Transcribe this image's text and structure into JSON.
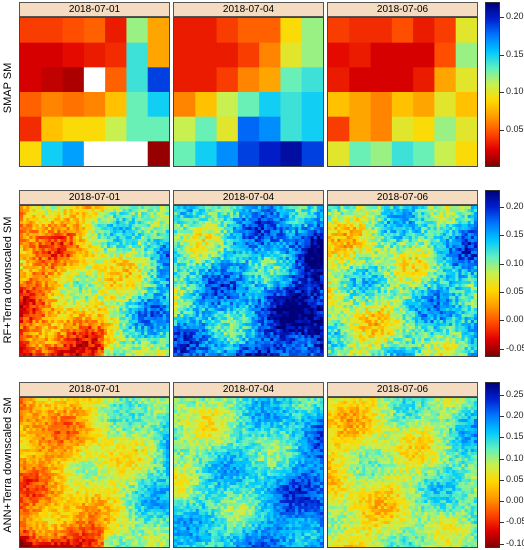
{
  "dates": [
    "2018-07-01",
    "2018-07-04",
    "2018-07-06"
  ],
  "rows": [
    {
      "label": "SMAP SM",
      "colorbar": {
        "min": 0.0,
        "max": 0.22,
        "ticks": [
          0.05,
          0.1,
          0.15,
          0.2
        ],
        "tick_labels": [
          "0.05",
          "0.10",
          "0.15",
          "0.20"
        ]
      }
    },
    {
      "label": "RF+Terra downscaled SM",
      "colorbar": {
        "min": -0.065,
        "max": 0.23,
        "ticks": [
          -0.05,
          0.0,
          0.05,
          0.1,
          0.15,
          0.2
        ],
        "tick_labels": [
          "-0.05",
          "0.00",
          "0.05",
          "0.10",
          "0.15",
          "0.20"
        ]
      }
    },
    {
      "label": "ANN+Terra downscaled SM",
      "colorbar": {
        "min": -0.11,
        "max": 0.28,
        "ticks": [
          -0.1,
          -0.05,
          0.0,
          0.05,
          0.1,
          0.15,
          0.2,
          0.25
        ],
        "tick_labels": [
          "-0.10",
          "-0.05",
          "0.00",
          "0.05",
          "0.10",
          "0.15",
          "0.20",
          "0.25"
        ]
      }
    }
  ],
  "colormap": [
    "#800000",
    "#e00000",
    "#ff4a00",
    "#ff9a00",
    "#ffd800",
    "#c8f050",
    "#60f0c0",
    "#00c8ff",
    "#0078ff",
    "#0020d0",
    "#00007a"
  ],
  "chart_data": {
    "type": "heatmap",
    "smap_grid": {
      "2018-07-01": [
        [
          0.04,
          0.04,
          0.045,
          0.05,
          0.03,
          0.12,
          0.07
        ],
        [
          0.02,
          0.02,
          0.025,
          0.03,
          0.035,
          0.14,
          0.07
        ],
        [
          0.02,
          0.015,
          0.01,
          null,
          0.05,
          0.14,
          0.19
        ],
        [
          0.05,
          0.06,
          0.055,
          0.06,
          0.08,
          0.13,
          0.15
        ],
        [
          0.035,
          0.08,
          0.09,
          0.09,
          0.11,
          0.13,
          0.13
        ],
        [
          0.09,
          0.15,
          0.165,
          null,
          null,
          null,
          0.005
        ]
      ],
      "2018-07-04": [
        [
          0.03,
          0.03,
          0.04,
          0.05,
          0.05,
          0.09,
          0.12
        ],
        [
          0.03,
          0.03,
          0.03,
          0.04,
          0.06,
          0.1,
          0.12
        ],
        [
          0.03,
          0.03,
          0.04,
          0.06,
          0.07,
          0.13,
          0.14
        ],
        [
          0.06,
          0.08,
          0.11,
          0.13,
          0.15,
          0.14,
          0.15
        ],
        [
          0.11,
          0.13,
          0.1,
          0.18,
          0.17,
          0.14,
          0.15
        ],
        [
          0.13,
          0.15,
          0.17,
          0.19,
          0.2,
          0.21,
          0.19
        ]
      ],
      "2018-07-06": [
        [
          0.04,
          0.035,
          0.035,
          0.045,
          0.03,
          0.04,
          0.1
        ],
        [
          0.025,
          0.03,
          0.02,
          0.02,
          0.02,
          0.045,
          0.12
        ],
        [
          0.03,
          0.02,
          0.02,
          0.02,
          0.03,
          0.07,
          0.1
        ],
        [
          0.08,
          0.07,
          0.06,
          0.08,
          0.07,
          0.1,
          0.08
        ],
        [
          0.04,
          0.07,
          0.06,
          0.1,
          0.09,
          0.12,
          0.1
        ],
        [
          0.1,
          0.13,
          0.12,
          0.14,
          0.13,
          0.11,
          0.09
        ]
      ]
    },
    "downscaled_fields": {
      "RF+Terra downscaled SM": {
        "2018-07-01": {
          "base": 0.08,
          "west_dry": 0.04,
          "east_wet": 0.07,
          "south_dry_patch": -0.09
        },
        "2018-07-04": {
          "base": 0.13,
          "west_dry": 0.02,
          "east_wet": 0.06,
          "south_dry_patch": 0.0
        },
        "2018-07-06": {
          "base": 0.1,
          "west_dry": 0.01,
          "east_wet": 0.05,
          "south_dry_patch": 0.0
        }
      },
      "ANN+Terra downscaled SM": {
        "2018-07-01": {
          "base": 0.08,
          "west_dry": 0.05,
          "east_wet": 0.07,
          "south_dry_patch": -0.12
        },
        "2018-07-04": {
          "base": 0.12,
          "west_dry": 0.02,
          "east_wet": 0.06,
          "south_dry_patch": 0.0
        },
        "2018-07-06": {
          "base": 0.09,
          "west_dry": 0.02,
          "east_wet": 0.05,
          "south_dry_patch": 0.0
        }
      }
    }
  }
}
